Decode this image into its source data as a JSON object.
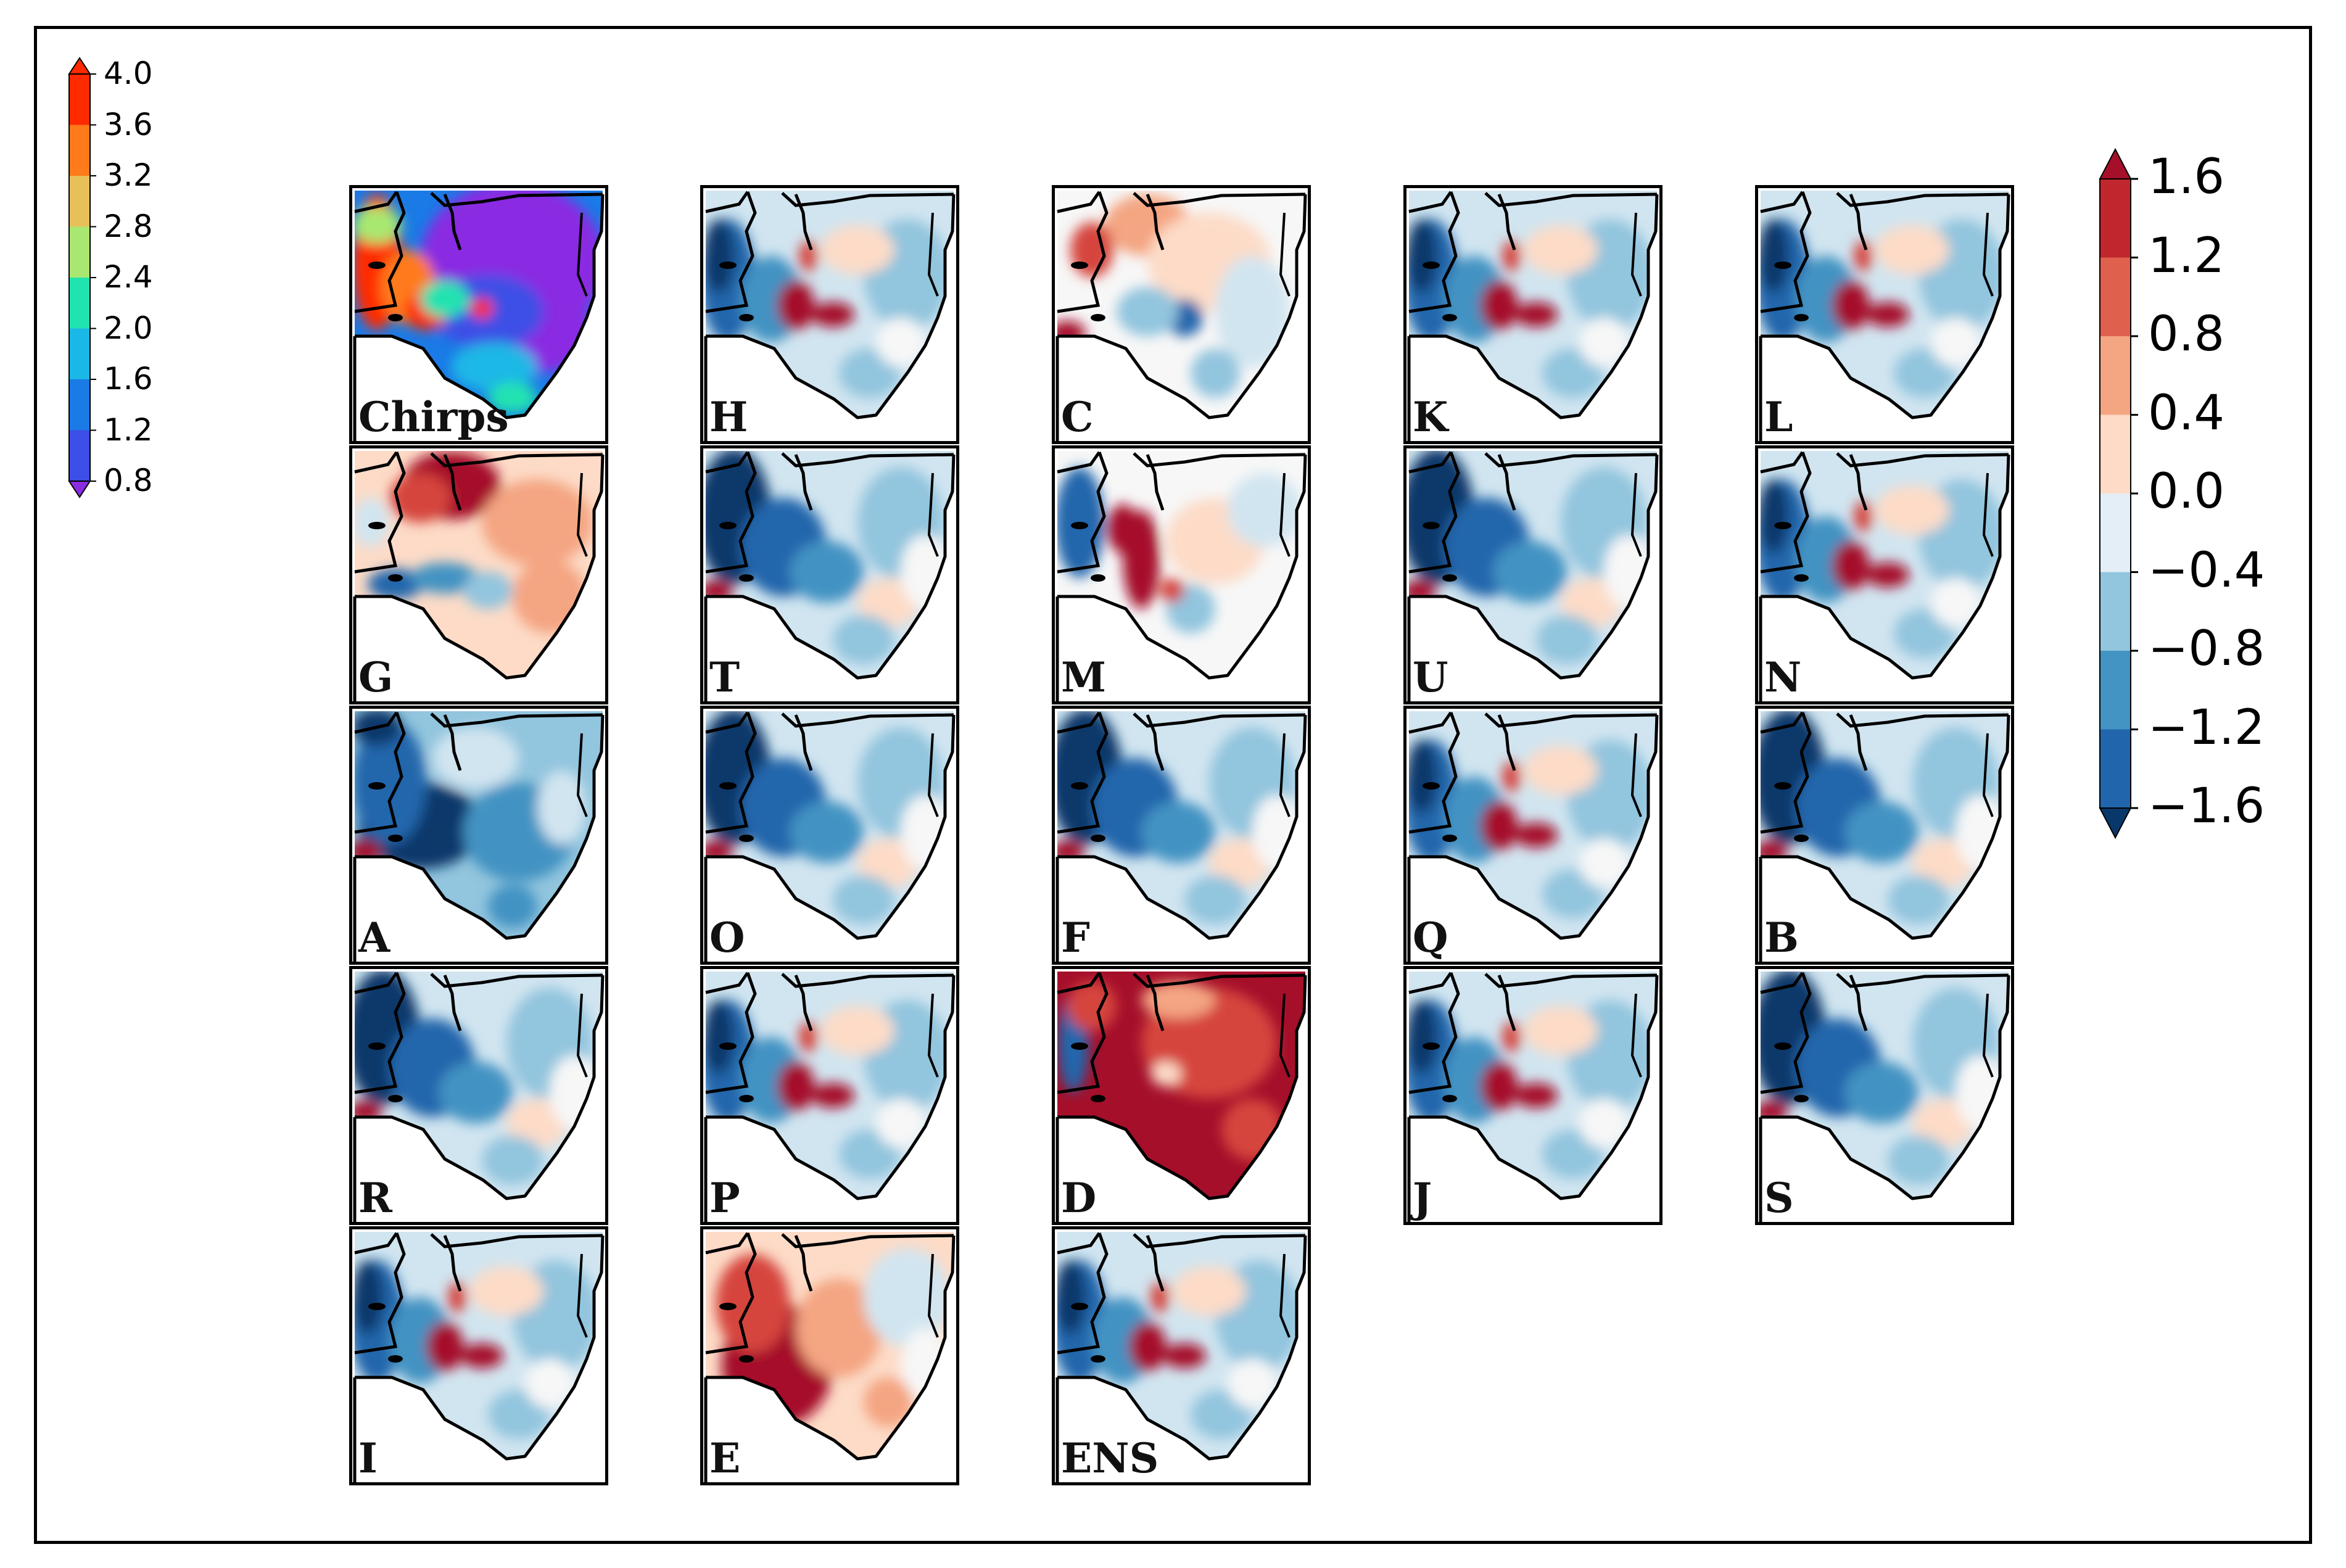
{
  "figure_title": "",
  "colorbars": {
    "absolute": {
      "ticks": [
        "4.0",
        "3.6",
        "3.2",
        "2.8",
        "2.4",
        "2.0",
        "1.6",
        "1.2",
        "0.8"
      ],
      "colors": [
        "#ff2a00",
        "#ff7a1a",
        "#e8c05a",
        "#a8e870",
        "#20e3b0",
        "#1ab8e6",
        "#1a7ae6",
        "#3c4fe6",
        "#8a2be2"
      ],
      "extend": "both"
    },
    "bias": {
      "ticks": [
        "1.6",
        "1.2",
        "0.8",
        "0.4",
        "0.0",
        "−0.4",
        "−0.8",
        "−1.2",
        "−1.6"
      ],
      "colors": [
        "#a50f2a",
        "#d6443c",
        "#f4a582",
        "#fddbc7",
        "#f7f7f7",
        "#d1e5f0",
        "#92c5de",
        "#4393c3",
        "#2166ac",
        "#08376a"
      ],
      "extend": "both"
    }
  },
  "panels": [
    {
      "label": "Chirps",
      "type": "absolute",
      "pattern": "chirps"
    },
    {
      "label": "H",
      "type": "bias",
      "pattern": "mixed_red_center"
    },
    {
      "label": "C",
      "type": "bias",
      "pattern": "mostly_light_red"
    },
    {
      "label": "K",
      "type": "bias",
      "pattern": "mixed_red_center"
    },
    {
      "label": "L",
      "type": "bias",
      "pattern": "mixed_red_center"
    },
    {
      "label": "G",
      "type": "bias",
      "pattern": "red_north"
    },
    {
      "label": "T",
      "type": "bias",
      "pattern": "blue_west"
    },
    {
      "label": "M",
      "type": "bias",
      "pattern": "red_center"
    },
    {
      "label": "U",
      "type": "bias",
      "pattern": "blue_west"
    },
    {
      "label": "N",
      "type": "bias",
      "pattern": "mixed_red_center"
    },
    {
      "label": "A",
      "type": "bias",
      "pattern": "deep_blue"
    },
    {
      "label": "O",
      "type": "bias",
      "pattern": "blue_west"
    },
    {
      "label": "F",
      "type": "bias",
      "pattern": "blue_west"
    },
    {
      "label": "Q",
      "type": "bias",
      "pattern": "mixed_red_center"
    },
    {
      "label": "B",
      "type": "bias",
      "pattern": "blue_west"
    },
    {
      "label": "R",
      "type": "bias",
      "pattern": "blue_west"
    },
    {
      "label": "P",
      "type": "bias",
      "pattern": "mixed_red_center"
    },
    {
      "label": "D",
      "type": "bias",
      "pattern": "deep_red"
    },
    {
      "label": "J",
      "type": "bias",
      "pattern": "mixed_red_center"
    },
    {
      "label": "S",
      "type": "bias",
      "pattern": "blue_west"
    },
    {
      "label": "I",
      "type": "bias",
      "pattern": "mixed_red_center"
    },
    {
      "label": "E",
      "type": "bias",
      "pattern": "red_southwest"
    },
    {
      "label": "ENS",
      "type": "bias",
      "pattern": "mixed_red_center"
    }
  ]
}
